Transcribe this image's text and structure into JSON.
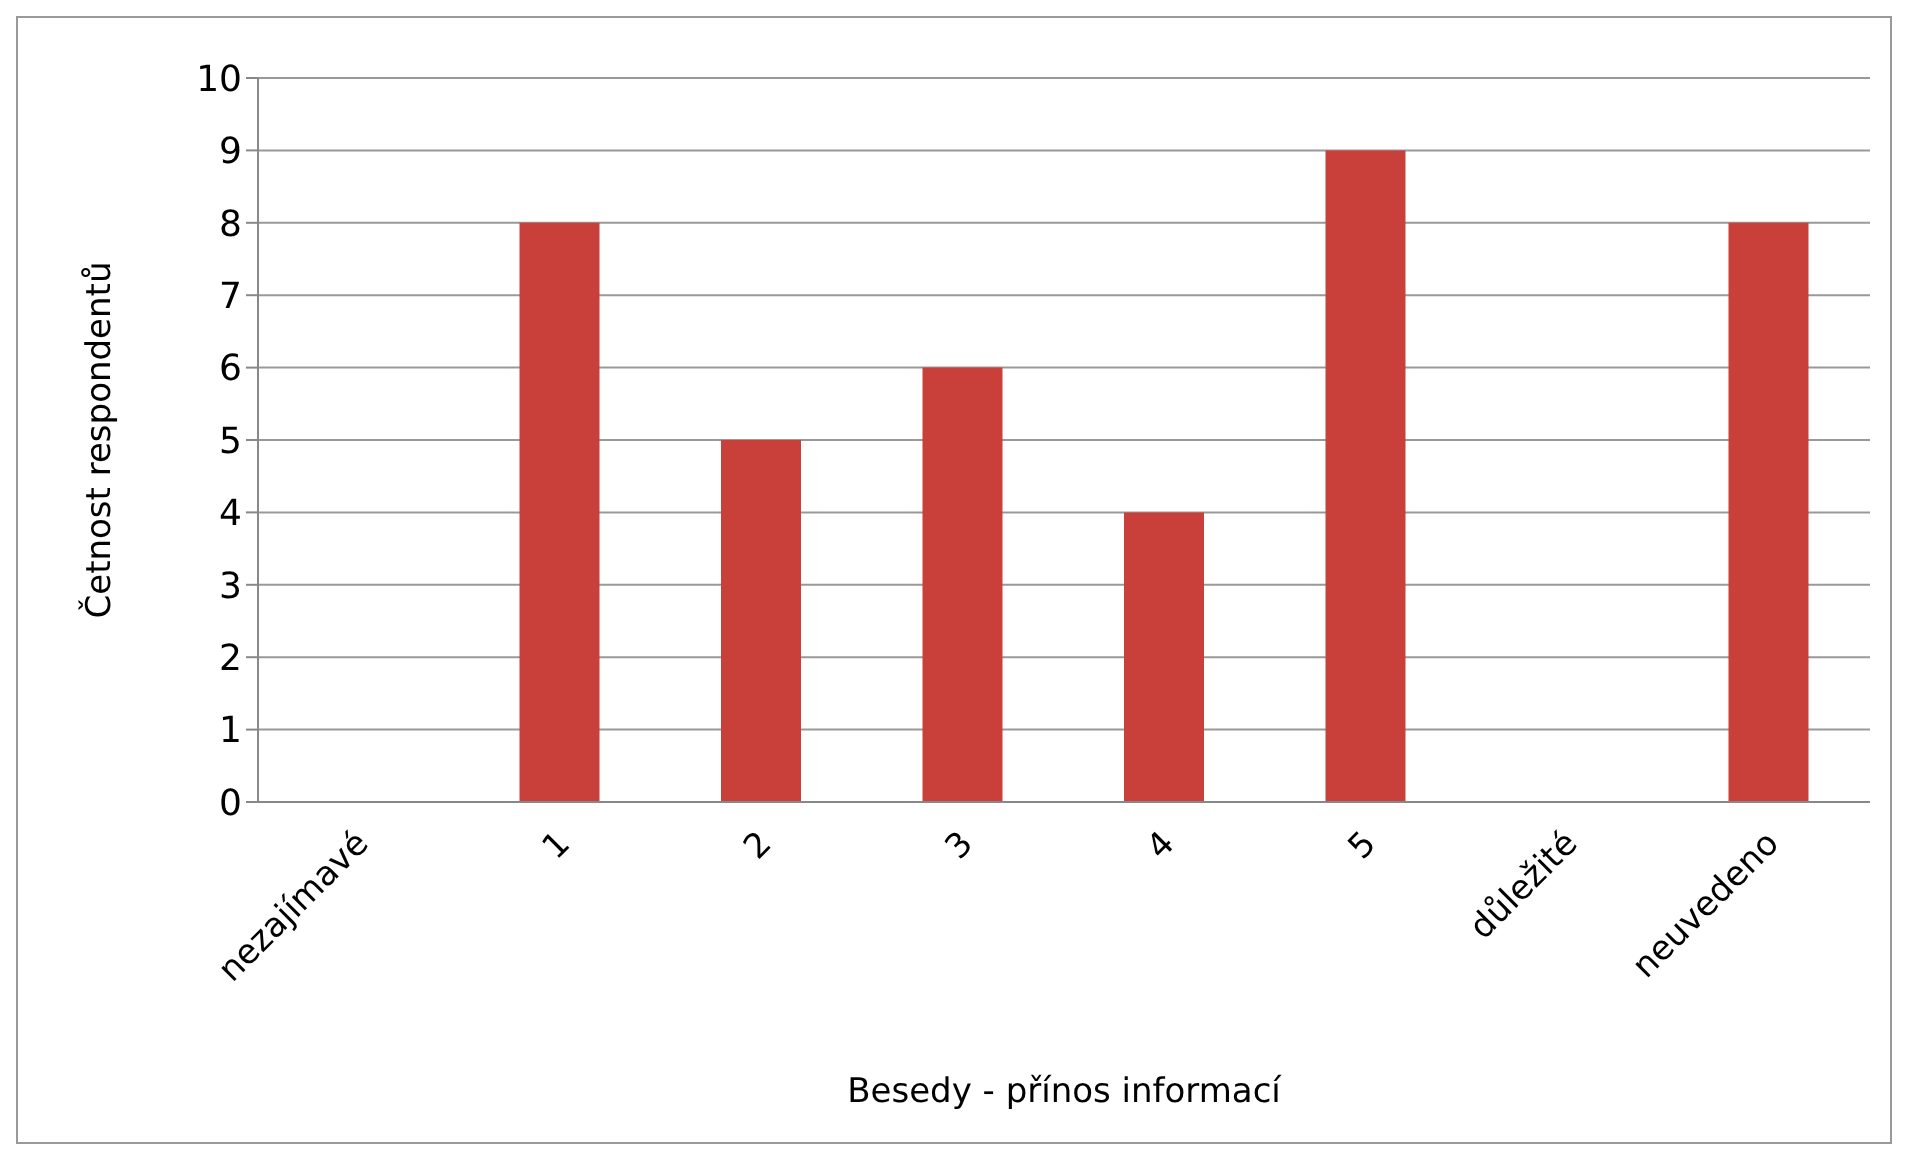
{
  "chart_data": {
    "type": "bar",
    "xlabel": "Besedy - přínos informací",
    "ylabel": "Četnost respondentů",
    "categories": [
      "nezajímavé",
      "1",
      "2",
      "3",
      "4",
      "5",
      "důležité",
      "neuvedeno"
    ],
    "values": [
      0,
      8,
      5,
      6,
      4,
      9,
      0,
      8
    ],
    "color": "#c9403a",
    "ylim": [
      0,
      10
    ],
    "yticks": [
      0,
      1,
      2,
      3,
      4,
      5,
      6,
      7,
      8,
      9,
      10
    ],
    "grid": "y"
  }
}
